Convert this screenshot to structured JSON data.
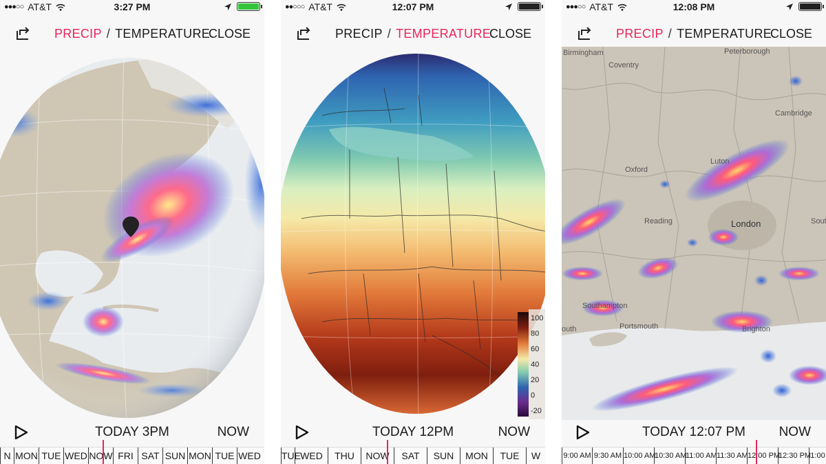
{
  "phones": [
    {
      "status": {
        "carrier": "AT&T",
        "time": "3:27 PM",
        "battery": "green"
      },
      "tabs": {
        "precip": "PRECIP",
        "temperature": "TEMPERATURE",
        "active": "precip"
      },
      "close_label": "CLOSE",
      "time_label": "TODAY  3PM",
      "now_label": "NOW",
      "timeline": [
        "N",
        "MON",
        "TUE",
        "WED",
        "NOW",
        "FRI",
        "SAT",
        "SUN",
        "MON",
        "TUE",
        "WED"
      ]
    },
    {
      "status": {
        "carrier": "AT&T",
        "time": "12:07 PM",
        "battery": "black"
      },
      "tabs": {
        "precip": "PRECIP",
        "temperature": "TEMPERATURE",
        "active": "temperature"
      },
      "close_label": "CLOSE",
      "time_label": "TODAY  12PM",
      "now_label": "NOW",
      "timeline": [
        "TUE",
        "WED",
        "THU",
        "NOW",
        "SAT",
        "SUN",
        "MON",
        "TUE",
        "W"
      ],
      "legend_ticks": [
        "100",
        "80",
        "60",
        "40",
        "20",
        "0",
        "-20"
      ]
    },
    {
      "status": {
        "carrier": "AT&T",
        "time": "12:08 PM",
        "battery": "black"
      },
      "tabs": {
        "precip": "PRECIP",
        "temperature": "TEMPERATURE",
        "active": "precip"
      },
      "close_label": "CLOSE",
      "time_label": "TODAY  12:07 PM",
      "now_label": "NOW",
      "timeline": [
        "9:00 AM",
        "9:30 AM",
        "10:00 AM",
        "10:30 AM",
        "11:00 AM",
        "11:30 AM",
        "12:00 PM",
        "12:30 PM",
        "1:00"
      ],
      "cities": [
        "Birmingham",
        "Coventry",
        "Peterborough",
        "Cambridge",
        "Oxford",
        "Luton",
        "Reading",
        "London",
        "Sout",
        "Southampton",
        "Portsmouth",
        "outh",
        "Brighton"
      ]
    }
  ],
  "colors": {
    "accent": "#e8245a",
    "land": "#cfc6b4",
    "ocean": "#eef0f2"
  }
}
